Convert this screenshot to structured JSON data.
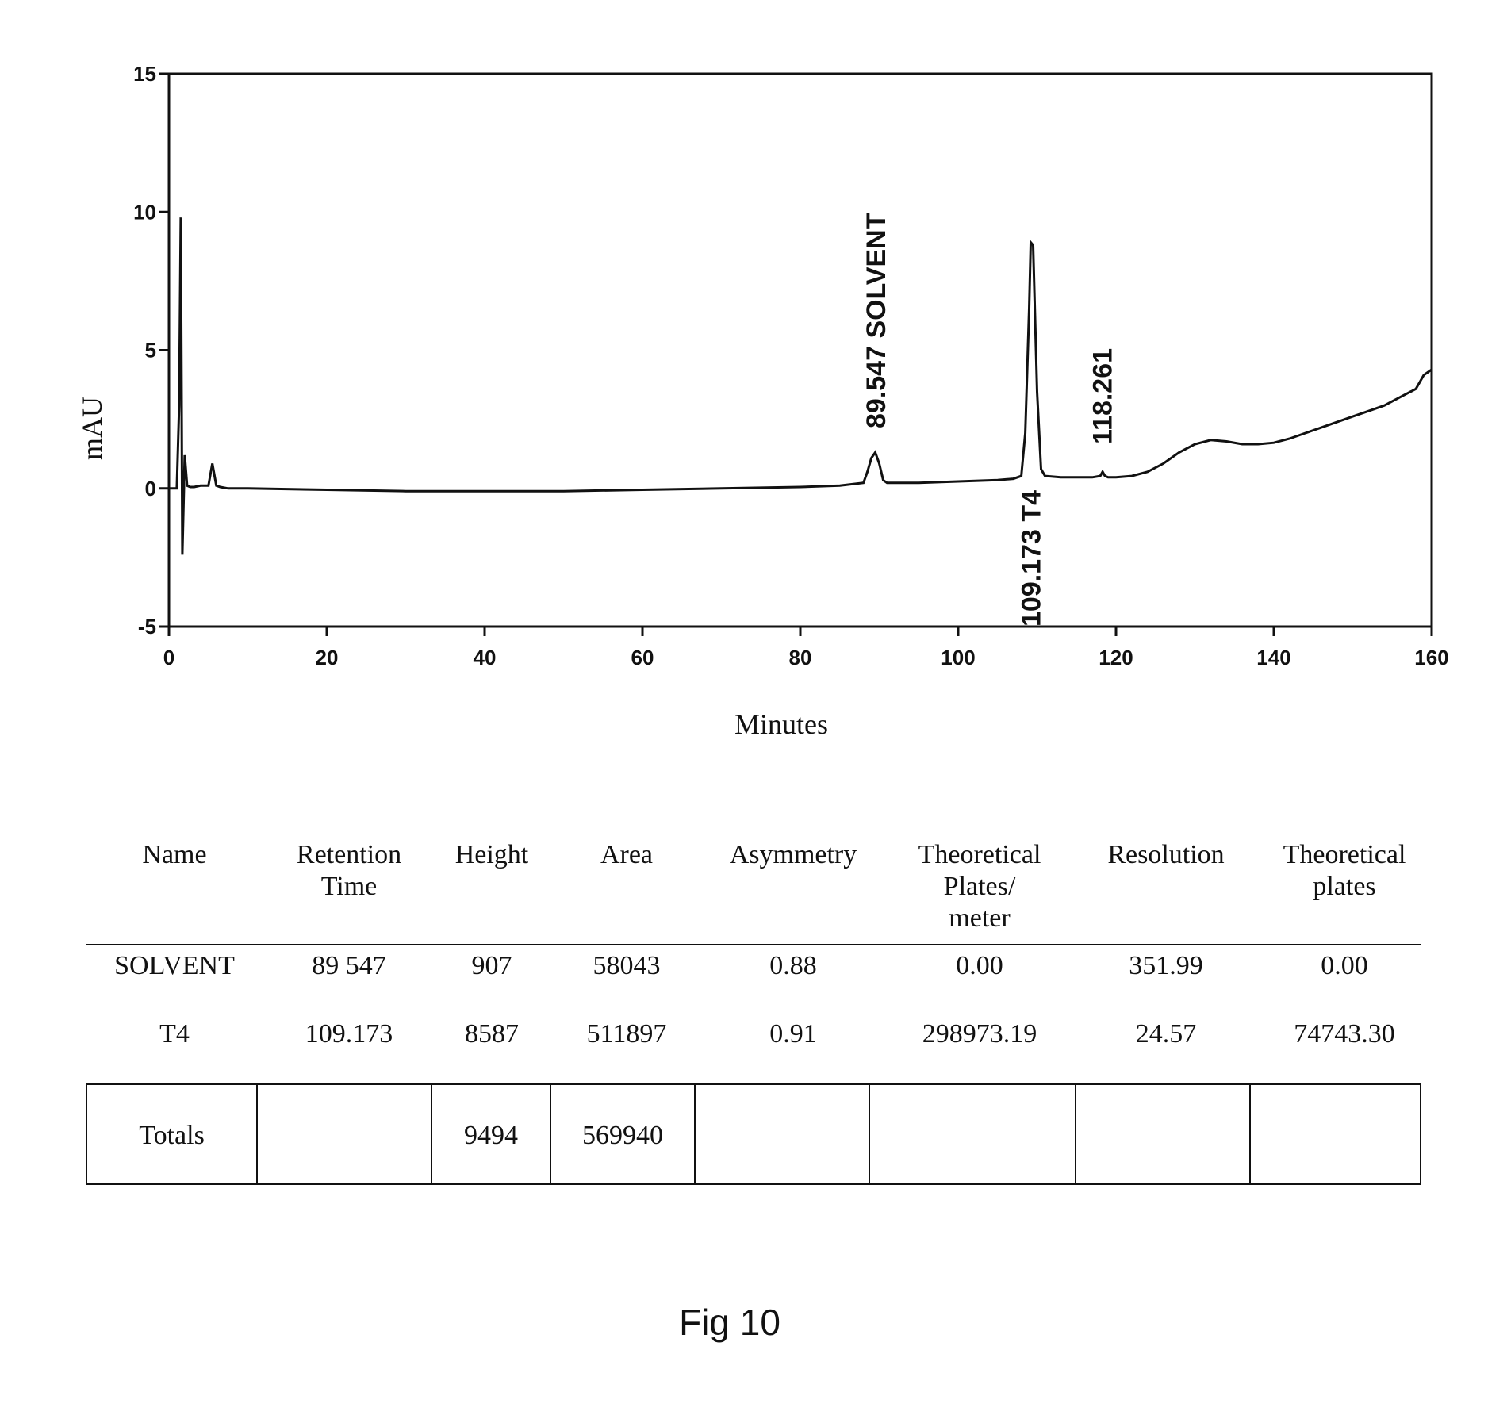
{
  "chart_data": {
    "type": "line",
    "xlabel": "Minutes",
    "ylabel": "mAU",
    "xlim": [
      0,
      160
    ],
    "ylim": [
      -5,
      15
    ],
    "x_ticks": [
      "0",
      "20",
      "40",
      "60",
      "80",
      "100",
      "120",
      "140",
      "160"
    ],
    "y_ticks": [
      "15",
      "10",
      "5",
      "0",
      "-5"
    ],
    "grid": false,
    "legend": "none",
    "series": [
      {
        "x": [
          0,
          1.0,
          1.3,
          1.5,
          1.7,
          2.0,
          2.3,
          2.7,
          3.2,
          4.0,
          5.0,
          5.5,
          6.0,
          6.5,
          7.5,
          10,
          20,
          30,
          40,
          50,
          60,
          70,
          80,
          85,
          88.0,
          88.5,
          89.0,
          89.5,
          90.0,
          90.5,
          91.0,
          92,
          95,
          100,
          105,
          107,
          108.0,
          108.5,
          109.0,
          109.2,
          109.5,
          110.0,
          110.5,
          111,
          113,
          115,
          117,
          118.0,
          118.3,
          118.6,
          119,
          120,
          122,
          124,
          126,
          128,
          130,
          132,
          134,
          136,
          138,
          140,
          142,
          144,
          146,
          148,
          150,
          152,
          154,
          156,
          158,
          159,
          160
        ],
        "y": [
          0,
          0,
          3,
          9.8,
          -2.4,
          1.2,
          0.1,
          0.05,
          0.05,
          0.1,
          0.1,
          0.9,
          0.1,
          0.05,
          0,
          0,
          -0.05,
          -0.1,
          -0.1,
          -0.1,
          -0.05,
          0,
          0.05,
          0.1,
          0.2,
          0.6,
          1.1,
          1.3,
          0.9,
          0.3,
          0.2,
          0.2,
          0.2,
          0.25,
          0.3,
          0.35,
          0.45,
          2.0,
          6.5,
          8.9,
          8.8,
          3.5,
          0.7,
          0.45,
          0.4,
          0.4,
          0.4,
          0.45,
          0.6,
          0.45,
          0.4,
          0.4,
          0.45,
          0.6,
          0.9,
          1.3,
          1.6,
          1.75,
          1.7,
          1.6,
          1.6,
          1.65,
          1.8,
          2.0,
          2.2,
          2.4,
          2.6,
          2.8,
          3.0,
          3.3,
          3.6,
          4.1,
          4.3
        ]
      }
    ],
    "peak_labels": [
      {
        "x": 89.547,
        "text": "89.547  SOLVENT"
      },
      {
        "x": 109.173,
        "text": "109.173  T4"
      },
      {
        "x": 118.261,
        "text": "118.261"
      }
    ]
  },
  "table": {
    "headers": [
      "Name",
      "Retention\nTime",
      "Height",
      "Area",
      "Asymmetry",
      "Theoretical\nPlates/\nmeter",
      "Resolution",
      "Theoretical\nplates"
    ],
    "rows": [
      [
        "SOLVENT",
        "89 547",
        "907",
        "58043",
        "0.88",
        "0.00",
        "351.99",
        "0.00"
      ],
      [
        "T4",
        "109.173",
        "8587",
        "511897",
        "0.91",
        "298973.19",
        "24.57",
        "74743.30"
      ]
    ],
    "totals": [
      "Totals",
      "",
      "9494",
      "569940",
      "",
      "",
      "",
      ""
    ]
  },
  "caption": "Fig 10"
}
